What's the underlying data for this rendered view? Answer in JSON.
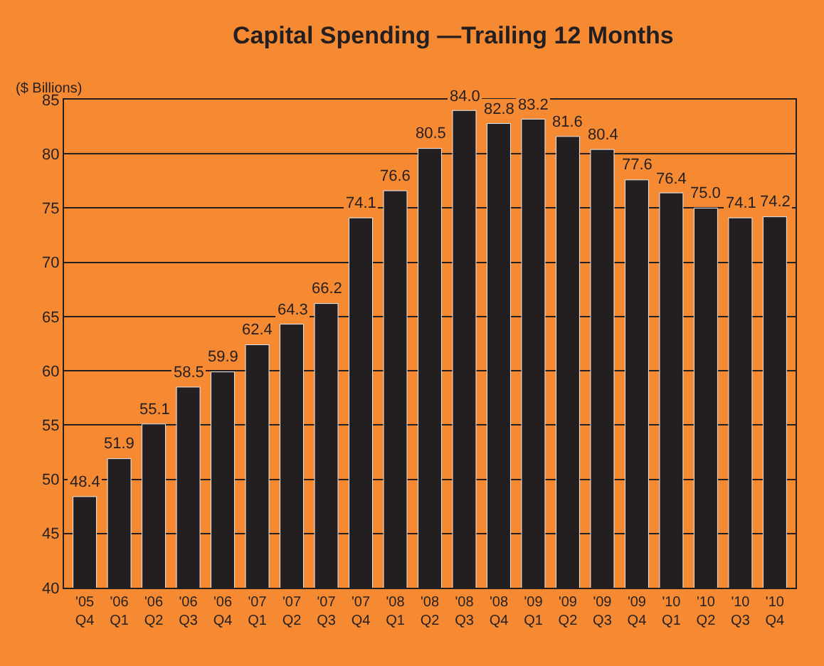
{
  "chart_data": {
    "type": "bar",
    "title": "Capital Spending —Trailing 12 Months",
    "ylabel": "($ Billions)",
    "categories": [
      "'05\nQ4",
      "'06\nQ1",
      "'06\nQ2",
      "'06\nQ3",
      "'06\nQ4",
      "'07\nQ1",
      "'07\nQ2",
      "'07\nQ3",
      "'07\nQ4",
      "'08\nQ1",
      "'08\nQ2",
      "'08\nQ3",
      "'08\nQ4",
      "'09\nQ1",
      "'09\nQ2",
      "'09\nQ3",
      "'09\nQ4",
      "'10\nQ1",
      "'10\nQ2",
      "'10\nQ3",
      "'10\nQ4"
    ],
    "values": [
      48.4,
      51.9,
      55.1,
      58.5,
      59.9,
      62.4,
      64.3,
      66.2,
      74.1,
      76.6,
      80.5,
      84.0,
      82.8,
      83.2,
      81.6,
      80.4,
      77.6,
      76.4,
      75.0,
      74.1,
      74.2
    ],
    "value_labels": [
      "48.4",
      "51.9",
      "55.1",
      "58.5",
      "59.9",
      "62.4",
      "64.3",
      "66.2",
      "74.1",
      "76.6",
      "80.5",
      "84.0",
      "82.8",
      "83.2",
      "81.6",
      "80.4",
      "77.6",
      "76.4",
      "75.0",
      "74.1",
      "74.2"
    ],
    "color": "#231f20",
    "ylim": [
      40,
      85
    ],
    "yticks": [
      40,
      45,
      50,
      55,
      60,
      65,
      70,
      75,
      80,
      85
    ],
    "grid": "y"
  }
}
